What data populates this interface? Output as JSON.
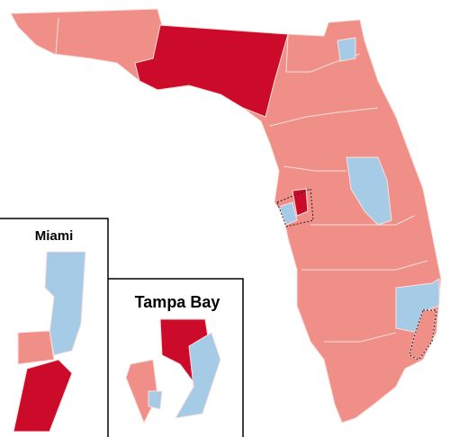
{
  "insets": [
    {
      "label": "Miami"
    },
    {
      "label": "Tampa Bay"
    }
  ]
}
